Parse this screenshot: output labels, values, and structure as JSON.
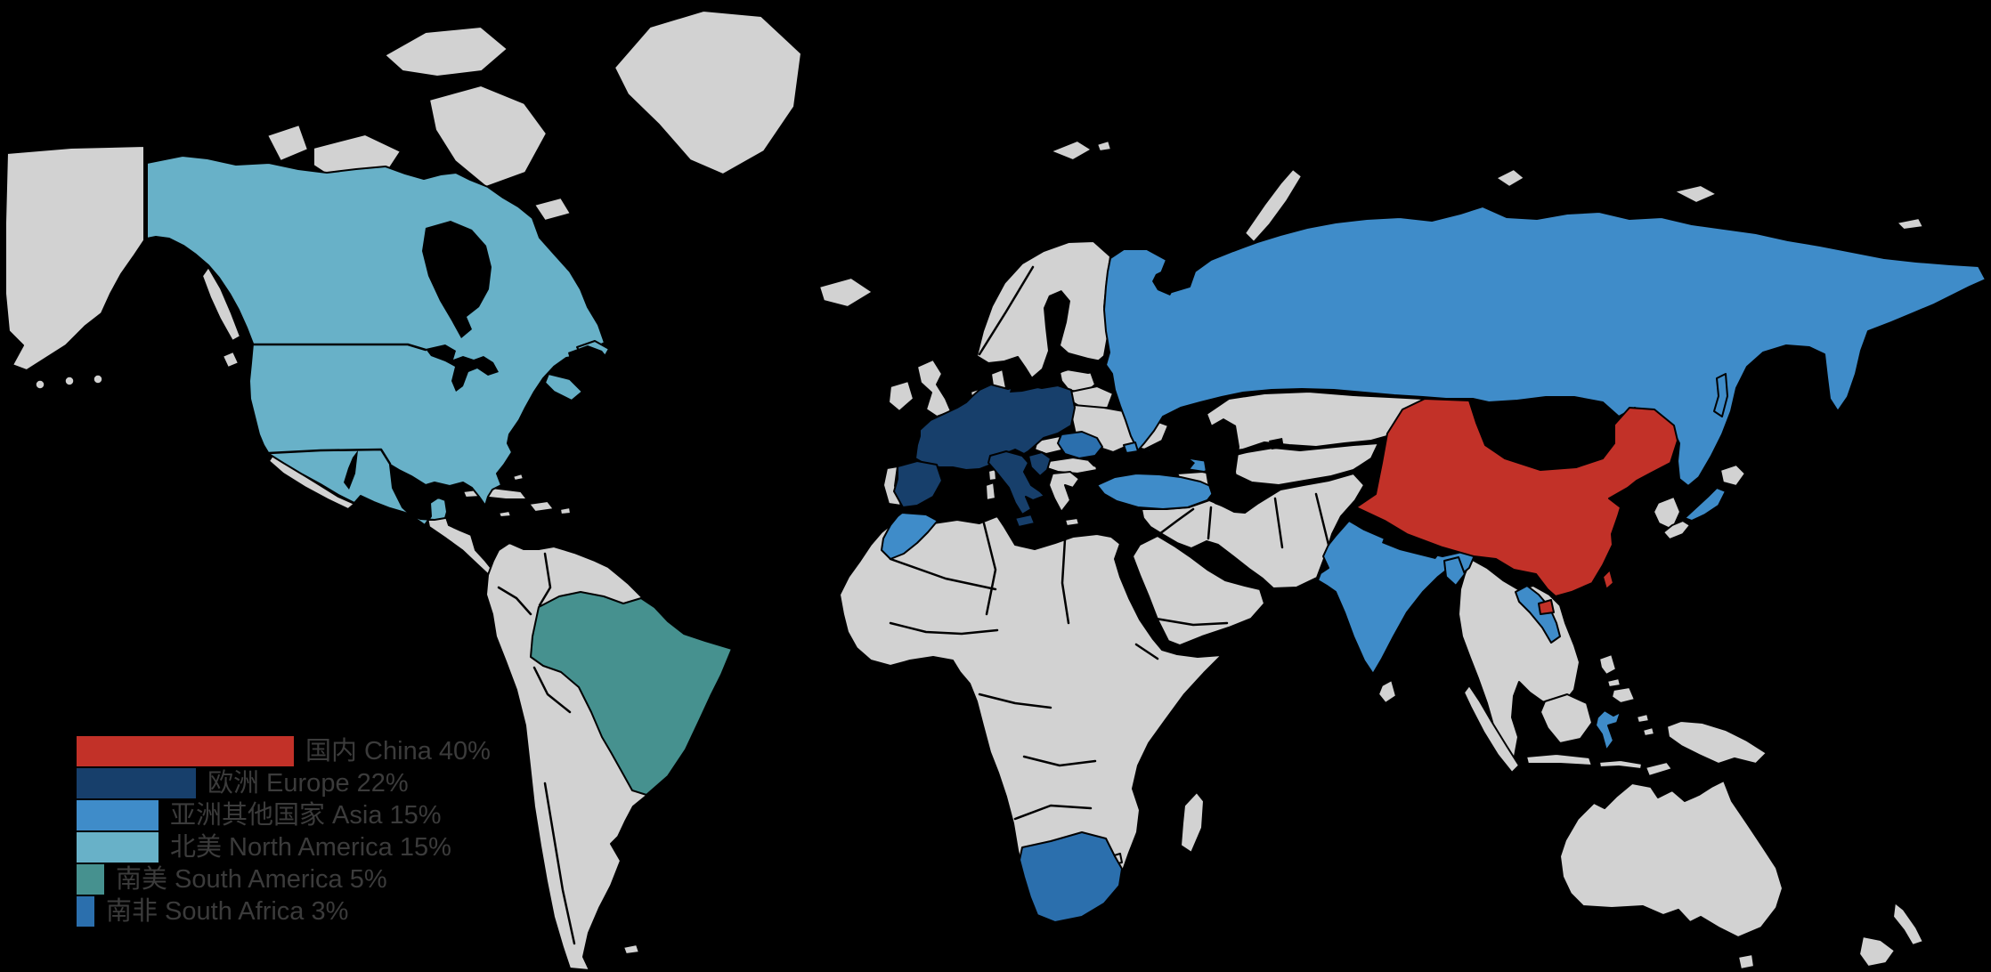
{
  "legend": {
    "items": [
      {
        "name": "china",
        "label": "国内 China 40%",
        "value_percent": 40,
        "color": "#c23128"
      },
      {
        "name": "europe",
        "label": "欧洲 Europe 22%",
        "value_percent": 22,
        "color": "#173f6b"
      },
      {
        "name": "asia",
        "label": "亚洲其他国家 Asia 15%",
        "value_percent": 15,
        "color": "#3f8cc9"
      },
      {
        "name": "north-america",
        "label": "北美 North America 15%",
        "value_percent": 15,
        "color": "#68b1c8"
      },
      {
        "name": "south-america",
        "label": "南美 South America 5%",
        "value_percent": 5,
        "color": "#46918f"
      },
      {
        "name": "south-africa",
        "label": "南非 South Africa 3%",
        "value_percent": 3,
        "color": "#2b6fad"
      }
    ],
    "text_color": "#3b3b3b"
  },
  "map": {
    "background": "#000000",
    "border_color": "#000000",
    "fills": {
      "land": "#d2d2d2",
      "north_america": "#68b1c8",
      "south_america": "#46918f",
      "europe": "#173f6b",
      "asia": "#3f8cc9",
      "south_africa": "#2b6fad",
      "china": "#c23128",
      "sea": "#000000"
    },
    "highlighted_regions": {
      "china": [
        "China",
        "Taiwan",
        "Hainan"
      ],
      "europe": [
        "Spain",
        "France",
        "Germany",
        "Poland",
        "Czechia",
        "Austria",
        "Switzerland",
        "Italy",
        "Sicily",
        "Balkans"
      ],
      "asia": [
        "Russia",
        "Turkey",
        "Morocco",
        "India",
        "Bangladesh",
        "Laos",
        "Sulawesi",
        "Honshu",
        "Sakhalin",
        "Crimea"
      ],
      "north_america": [
        "Canada",
        "United States",
        "Mexico",
        "Newfoundland",
        "Maritimes"
      ],
      "south_america": [
        "Brazil"
      ],
      "south_africa": [
        "South Africa",
        "Romania"
      ]
    }
  }
}
